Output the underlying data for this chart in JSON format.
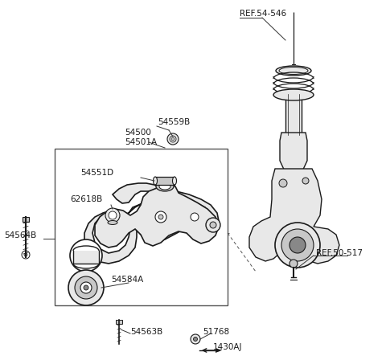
{
  "background_color": "#ffffff",
  "line_color": "#1a1a1a",
  "light_gray": "#e8e8e8",
  "mid_gray": "#c8c8c8",
  "dark_gray": "#888888",
  "labels": {
    "REF_54_546": "REF.54-546",
    "REF_50_517": "REF.50-517",
    "54559B": "54559B",
    "54500": "54500",
    "54501A": "54501A",
    "54551D": "54551D",
    "62618B": "62618B",
    "54564B": "54564B",
    "54584A": "54584A",
    "54563B": "54563B",
    "51768": "51768",
    "1430AJ": "1430AJ"
  },
  "figsize": [
    4.8,
    4.48
  ],
  "dpi": 100
}
